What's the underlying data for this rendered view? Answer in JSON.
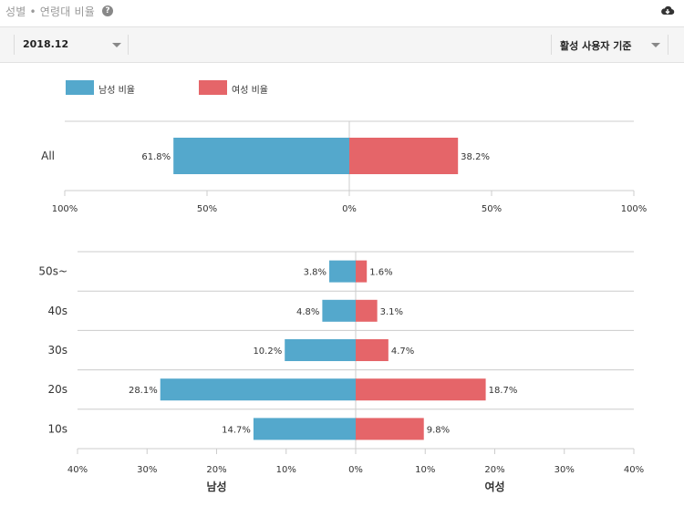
{
  "header": {
    "title": "성별 • 연령대 비율",
    "help_icon": "question-circle-icon",
    "download_icon": "cloud-download-icon"
  },
  "toolbar": {
    "period_value": "2018.12",
    "basis_value": "활성 사용자 기준"
  },
  "colors": {
    "male": "#54a8cc",
    "female": "#e56569",
    "grid": "#cccccc",
    "tick_text": "#333333"
  },
  "legend": {
    "male_label": "남성 비율",
    "female_label": "여성 비율"
  },
  "chart_data": [
    {
      "type": "bar",
      "orientation": "horizontal-diverging",
      "categories": [
        "All"
      ],
      "series": [
        {
          "name": "남성 비율",
          "values": [
            61.8
          ],
          "labels": [
            "61.8%"
          ]
        },
        {
          "name": "여성 비율",
          "values": [
            38.2
          ],
          "labels": [
            "38.2%"
          ]
        }
      ],
      "xlim": [
        -100,
        100
      ],
      "ticks": [
        -100,
        -50,
        0,
        50,
        100
      ],
      "tick_labels": [
        "100%",
        "50%",
        "0%",
        "50%",
        "100%"
      ],
      "xlabel_left": "",
      "xlabel_right": ""
    },
    {
      "type": "bar",
      "orientation": "horizontal-diverging",
      "categories": [
        "50s~",
        "40s",
        "30s",
        "20s",
        "10s"
      ],
      "series": [
        {
          "name": "남성 비율",
          "values": [
            3.8,
            4.8,
            10.2,
            28.1,
            14.7
          ],
          "labels": [
            "3.8%",
            "4.8%",
            "10.2%",
            "28.1%",
            "14.7%"
          ]
        },
        {
          "name": "여성 비율",
          "values": [
            1.6,
            3.1,
            4.7,
            18.7,
            9.8
          ],
          "labels": [
            "1.6%",
            "3.1%",
            "4.7%",
            "18.7%",
            "9.8%"
          ]
        }
      ],
      "xlim": [
        -40,
        40
      ],
      "ticks": [
        -40,
        -30,
        -20,
        -10,
        0,
        10,
        20,
        30,
        40
      ],
      "tick_labels": [
        "40%",
        "30%",
        "20%",
        "10%",
        "0%",
        "10%",
        "20%",
        "30%",
        "40%"
      ],
      "xlabel_left": "남성",
      "xlabel_right": "여성"
    }
  ]
}
